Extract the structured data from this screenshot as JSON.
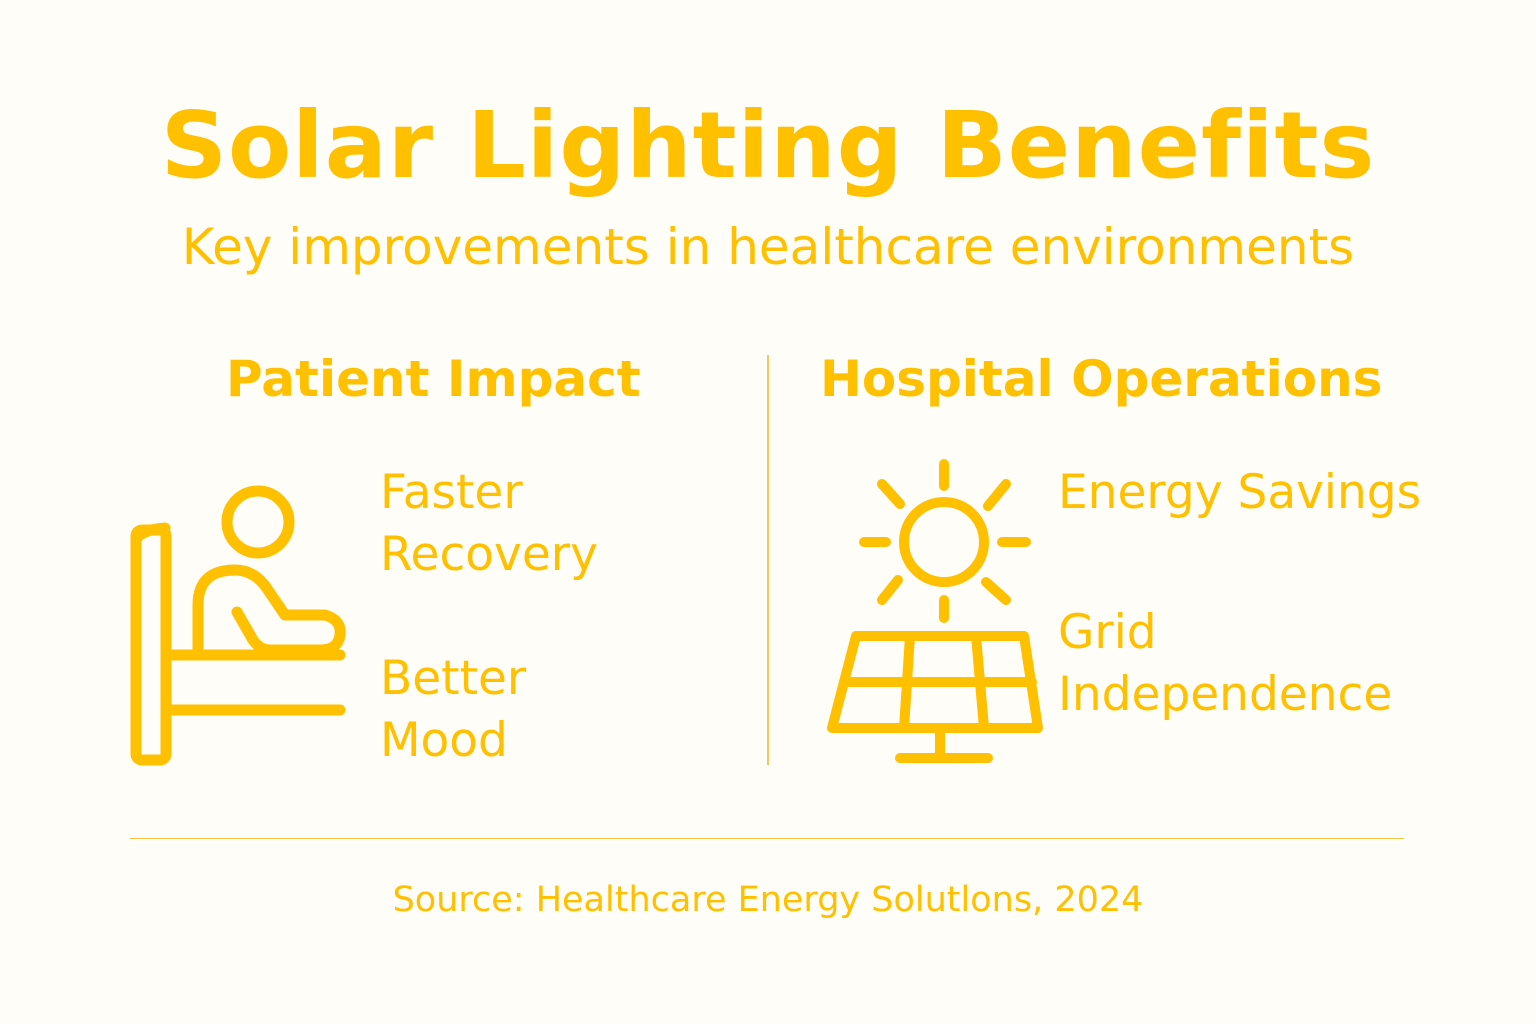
{
  "title": "Solar Lighting Benefits",
  "subtitle": "Key improvements in healthcare environments",
  "accent_color": "#ffc000",
  "sections": [
    {
      "heading": "Patient Impact",
      "icon": "patient-bed-icon",
      "items": [
        {
          "line1": "Faster",
          "line2": "Recovery"
        },
        {
          "line1": "Better",
          "line2": "Mood"
        }
      ]
    },
    {
      "heading": "Hospital Operations",
      "icon": "solar-panel-sun-icon",
      "items": [
        {
          "line1": "Energy Savings"
        },
        {
          "line1": "Grid",
          "line2": "Independence"
        }
      ]
    }
  ],
  "source": "Source: Healthcare Energy Solutlons, 2024"
}
